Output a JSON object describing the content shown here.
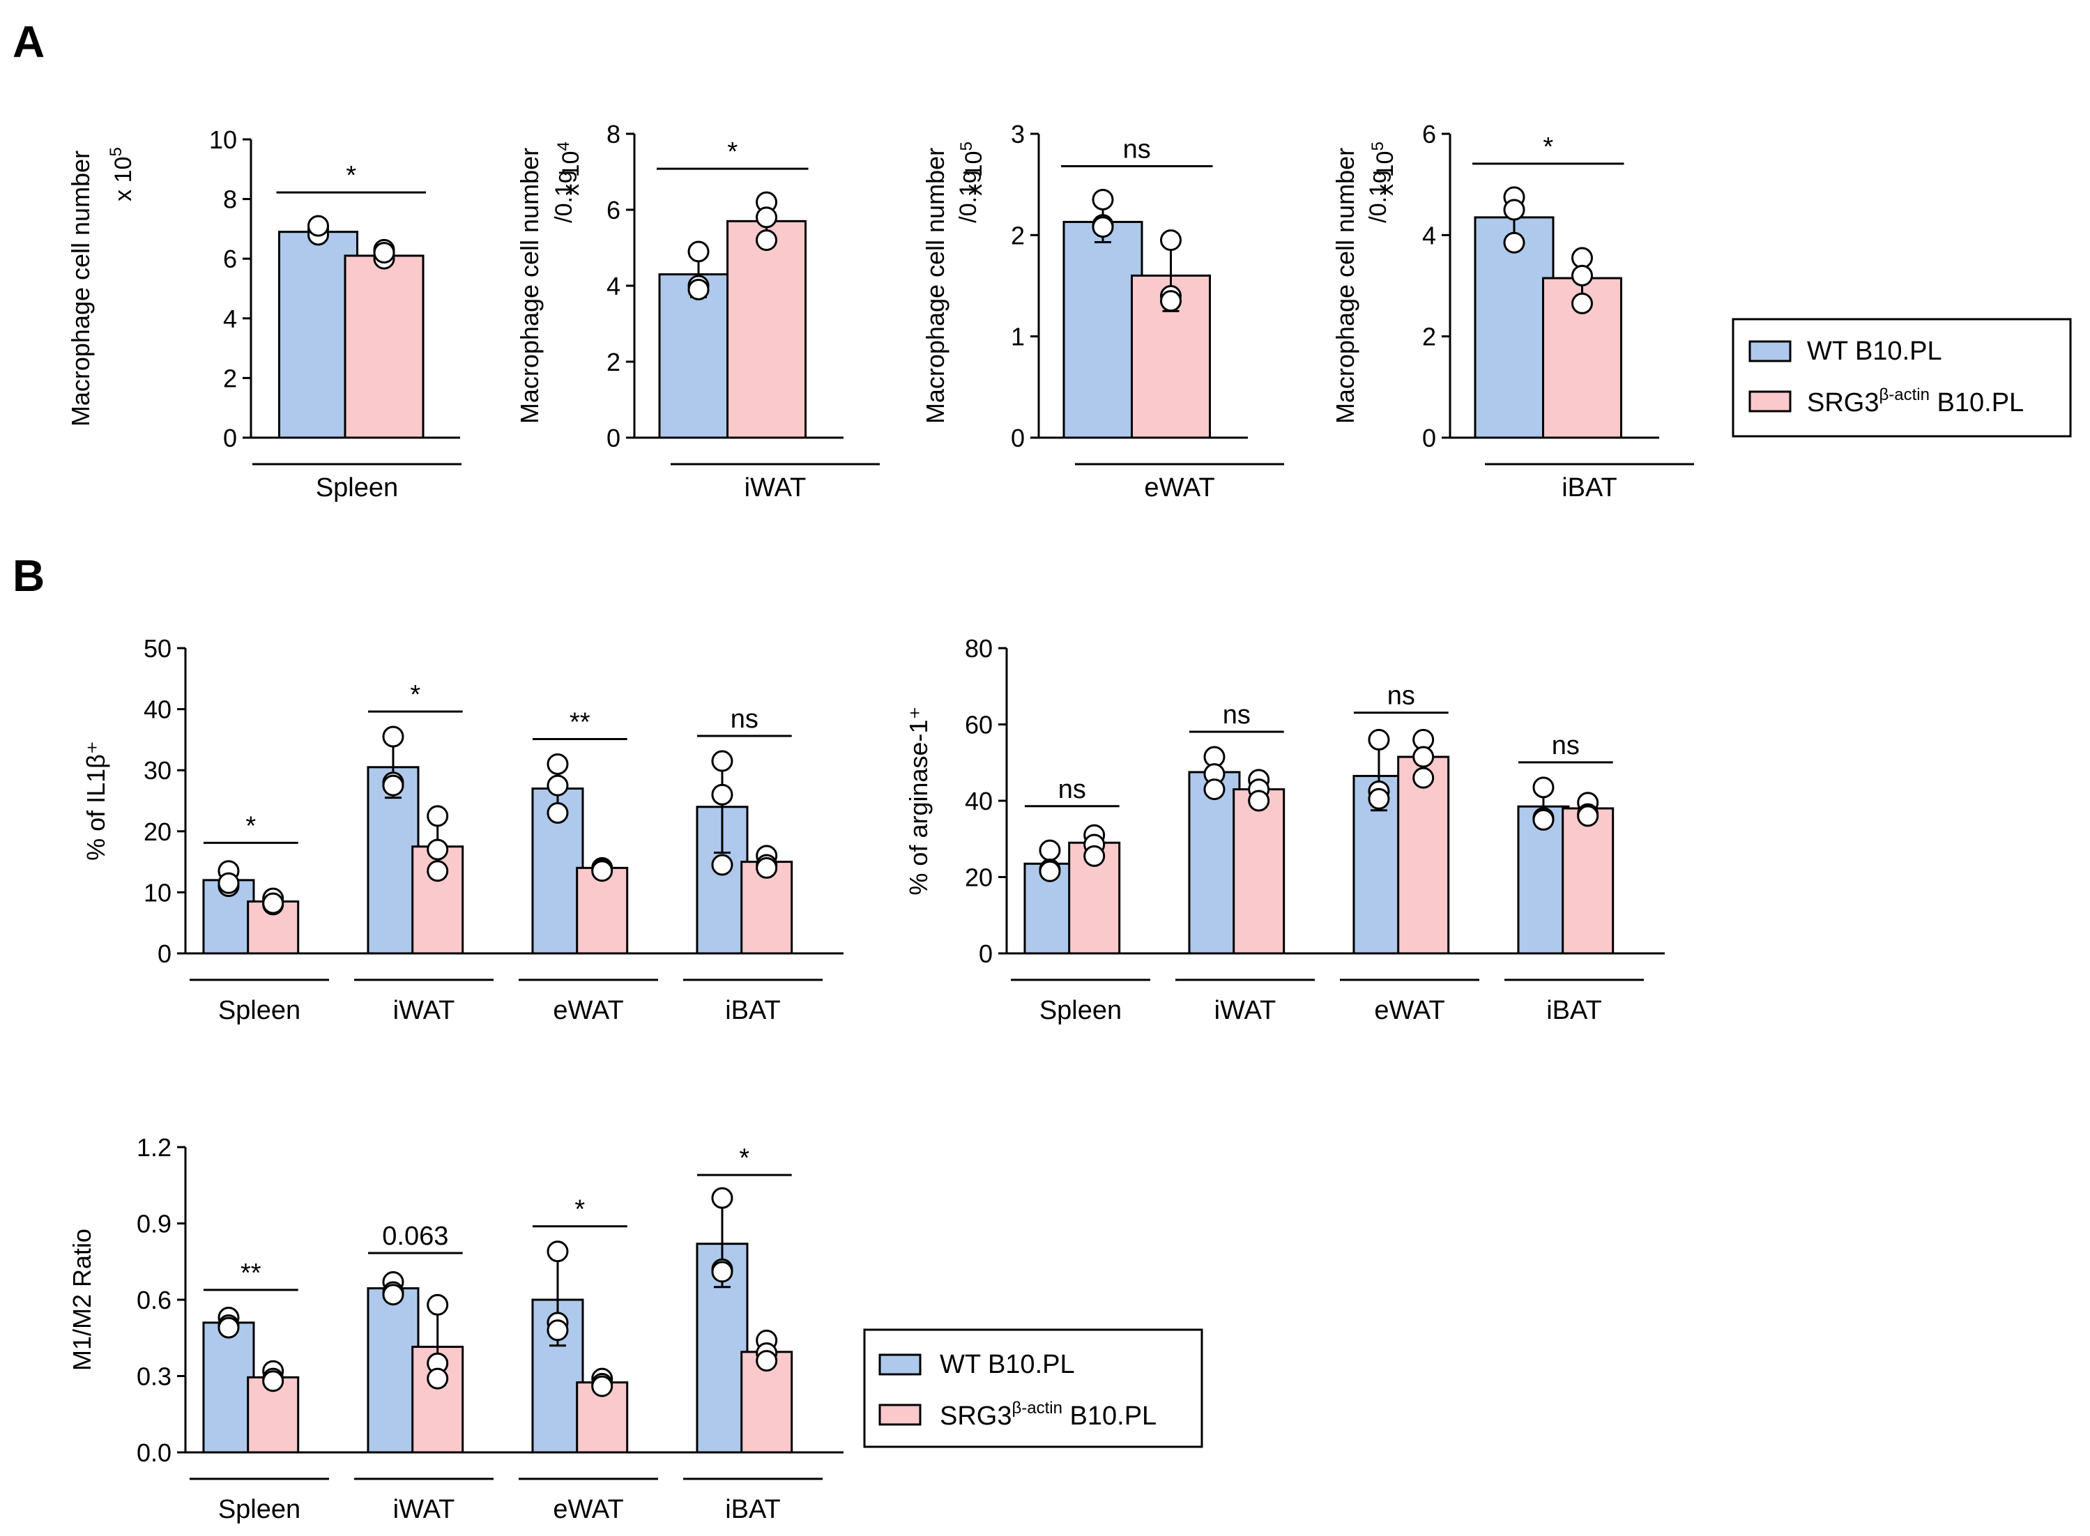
{
  "panels": {
    "a": "A",
    "b": "B"
  },
  "colors": {
    "wt": "#aec9ec",
    "srg3": "#f9c9cb",
    "stroke": "#000000"
  },
  "legend": {
    "wt": "WT B10.PL",
    "srg3_main": "SRG3",
    "srg3_sup": "β-actin",
    "srg3_tail": " B10.PL"
  },
  "chart_data": [
    {
      "id": "a1",
      "panel": "A",
      "type": "bar",
      "ylabel": "Macrophage cell number",
      "ylabel2": "",
      "multiplier": "x 10",
      "multiplier_exp": "5",
      "ylim": [
        0,
        10
      ],
      "yticks": [
        "0",
        "2",
        "4",
        "6",
        "8",
        "10"
      ],
      "categories": [
        "Spleen"
      ],
      "series": [
        {
          "name": "WT B10.PL",
          "values": [
            6.9
          ],
          "errors": [
            0.2
          ],
          "points": [
            [
              7.0,
              6.8,
              7.1
            ]
          ]
        },
        {
          "name": "SRG3β-actin B10.PL",
          "values": [
            6.1
          ],
          "errors": [
            0.2
          ],
          "points": [
            [
              6.3,
              6.0,
              6.2
            ]
          ]
        }
      ],
      "significance": [
        "*"
      ]
    },
    {
      "id": "a2",
      "panel": "A",
      "type": "bar",
      "ylabel": "Macrophage cell number",
      "ylabel2": "/0.1g",
      "multiplier": "x 10",
      "multiplier_exp": "4",
      "ylim": [
        0,
        8
      ],
      "yticks": [
        "0",
        "2",
        "4",
        "6",
        "8"
      ],
      "categories": [
        "iWAT"
      ],
      "series": [
        {
          "name": "WT B10.PL",
          "values": [
            4.3
          ],
          "errors": [
            0.6
          ],
          "points": [
            [
              4.9,
              4.0,
              3.9
            ]
          ]
        },
        {
          "name": "SRG3β-actin B10.PL",
          "values": [
            5.7
          ],
          "errors": [
            0.5
          ],
          "points": [
            [
              6.2,
              5.8,
              5.2
            ]
          ]
        }
      ],
      "significance": [
        "*"
      ]
    },
    {
      "id": "a3",
      "panel": "A",
      "type": "bar",
      "ylabel": "Macrophage cell number",
      "ylabel2": "/0.1g",
      "multiplier": "x 10",
      "multiplier_exp": "5",
      "ylim": [
        0,
        3
      ],
      "yticks": [
        "0",
        "1",
        "2",
        "3"
      ],
      "categories": [
        "eWAT"
      ],
      "series": [
        {
          "name": "WT B10.PL",
          "values": [
            2.13
          ],
          "errors": [
            0.2
          ],
          "points": [
            [
              2.35,
              2.1,
              2.08
            ]
          ]
        },
        {
          "name": "SRG3β-actin B10.PL",
          "values": [
            1.6
          ],
          "errors": [
            0.35
          ],
          "points": [
            [
              1.95,
              1.4,
              1.35
            ]
          ]
        }
      ],
      "significance": [
        "ns"
      ]
    },
    {
      "id": "a4",
      "panel": "A",
      "type": "bar",
      "ylabel": "Macrophage cell number",
      "ylabel2": "/0.1g",
      "multiplier": "x 10",
      "multiplier_exp": "5",
      "ylim": [
        0,
        6
      ],
      "yticks": [
        "0",
        "2",
        "4",
        "6"
      ],
      "categories": [
        "iBAT"
      ],
      "series": [
        {
          "name": "WT B10.PL",
          "values": [
            4.35
          ],
          "errors": [
            0.4
          ],
          "points": [
            [
              4.75,
              4.5,
              3.85
            ]
          ]
        },
        {
          "name": "SRG3β-actin B10.PL",
          "values": [
            3.15
          ],
          "errors": [
            0.4
          ],
          "points": [
            [
              3.55,
              3.2,
              2.65
            ]
          ]
        }
      ],
      "significance": [
        "*"
      ]
    },
    {
      "id": "b1",
      "panel": "B",
      "type": "bar",
      "ylabel": "% of IL1β⁺",
      "ylabel2": "",
      "multiplier": "",
      "multiplier_exp": "",
      "ylim": [
        0,
        50
      ],
      "yticks": [
        "0",
        "10",
        "20",
        "30",
        "40",
        "50"
      ],
      "categories": [
        "Spleen",
        "iWAT",
        "eWAT",
        "iBAT"
      ],
      "series": [
        {
          "name": "WT B10.PL",
          "values": [
            12,
            30.5,
            27,
            24
          ],
          "errors": [
            2,
            5,
            4,
            7.5
          ],
          "points": [
            [
              13.5,
              11,
              11.5
            ],
            [
              35.5,
              28,
              27.5
            ],
            [
              31,
              27.5,
              23
            ],
            [
              31.5,
              26,
              14.5
            ]
          ]
        },
        {
          "name": "SRG3β-actin B10.PL",
          "values": [
            8.5,
            17.5,
            14,
            15
          ],
          "errors": [
            1,
            5,
            0.5,
            1.5
          ],
          "points": [
            [
              9,
              8,
              8.2
            ],
            [
              22.5,
              17,
              13.5
            ],
            [
              14,
              13.8,
              13.5
            ],
            [
              16,
              14.5,
              14
            ]
          ]
        }
      ],
      "significance": [
        "*",
        "*",
        "**",
        "ns"
      ]
    },
    {
      "id": "b2",
      "panel": "B",
      "type": "bar",
      "ylabel": "% of arginase-1⁺",
      "ylabel2": "",
      "multiplier": "",
      "multiplier_exp": "",
      "ylim": [
        0,
        80
      ],
      "yticks": [
        "0",
        "20",
        "40",
        "60",
        "80"
      ],
      "categories": [
        "Spleen",
        "iWAT",
        "eWAT",
        "iBAT"
      ],
      "series": [
        {
          "name": "WT B10.PL",
          "values": [
            23.5,
            47.5,
            46.5,
            38.5
          ],
          "errors": [
            3,
            4,
            9,
            5
          ],
          "points": [
            [
              27,
              22,
              21.5
            ],
            [
              51.5,
              47,
              43
            ],
            [
              56,
              42.5,
              40.5
            ],
            [
              43.5,
              35.5,
              35
            ]
          ]
        },
        {
          "name": "SRG3β-actin B10.PL",
          "values": [
            29,
            43,
            51.5,
            38
          ],
          "errors": [
            3,
            3,
            5,
            2
          ],
          "points": [
            [
              31,
              28.5,
              25.5
            ],
            [
              45.5,
              43,
              40
            ],
            [
              56,
              51.5,
              46
            ],
            [
              39.5,
              36.5,
              36
            ]
          ]
        }
      ],
      "significance": [
        "ns",
        "ns",
        "ns",
        "ns"
      ]
    },
    {
      "id": "b3",
      "panel": "B",
      "type": "bar",
      "ylabel": "M1/M2 Ratio",
      "ylabel2": "",
      "multiplier": "",
      "multiplier_exp": "",
      "ylim": [
        0,
        1.2
      ],
      "yticks": [
        "0.0",
        "0.3",
        "0.6",
        "0.9",
        "1.2"
      ],
      "categories": [
        "Spleen",
        "iWAT",
        "eWAT",
        "iBAT"
      ],
      "series": [
        {
          "name": "WT B10.PL",
          "values": [
            0.51,
            0.645,
            0.6,
            0.82
          ],
          "errors": [
            0.03,
            0.04,
            0.18,
            0.17
          ],
          "points": [
            [
              0.53,
              0.5,
              0.49
            ],
            [
              0.67,
              0.63,
              0.62
            ],
            [
              0.79,
              0.51,
              0.48
            ],
            [
              1.0,
              0.72,
              0.71
            ]
          ]
        },
        {
          "name": "SRG3β-actin B10.PL",
          "values": [
            0.295,
            0.415,
            0.275,
            0.395
          ],
          "errors": [
            0.03,
            0.15,
            0.03,
            0.05
          ],
          "points": [
            [
              0.32,
              0.29,
              0.28
            ],
            [
              0.58,
              0.35,
              0.29
            ],
            [
              0.29,
              0.27,
              0.26
            ],
            [
              0.44,
              0.39,
              0.36
            ]
          ]
        }
      ],
      "significance": [
        "**",
        "0.063",
        "*",
        "*"
      ]
    }
  ]
}
